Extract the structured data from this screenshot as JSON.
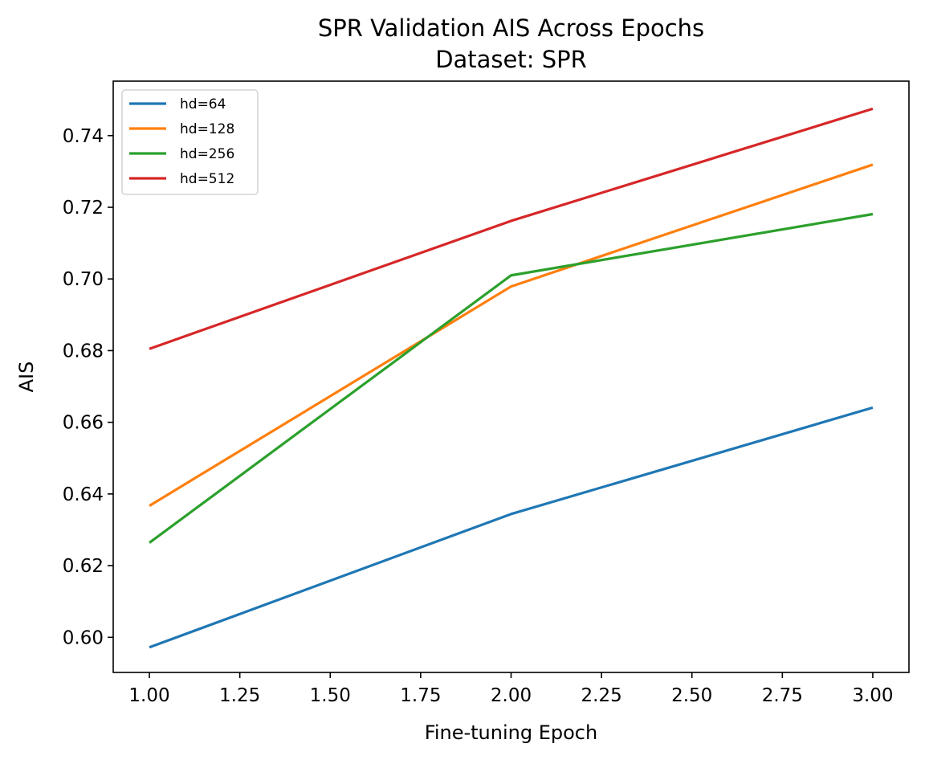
{
  "chart_data": {
    "type": "line",
    "title": "SPR Validation AIS Across Epochs",
    "subtitle": "Dataset: SPR",
    "xlabel": "Fine-tuning Epoch",
    "ylabel": "AIS",
    "x": [
      1,
      2,
      3
    ],
    "xlim": [
      0.9,
      3.1
    ],
    "ylim": [
      0.5902,
      0.7552
    ],
    "xticks": [
      1.0,
      1.25,
      1.5,
      1.75,
      2.0,
      2.25,
      2.5,
      2.75,
      3.0
    ],
    "xtick_labels": [
      "1.00",
      "1.25",
      "1.50",
      "1.75",
      "2.00",
      "2.25",
      "2.50",
      "2.75",
      "3.00"
    ],
    "yticks": [
      0.6,
      0.62,
      0.64,
      0.66,
      0.68,
      0.7,
      0.72,
      0.74
    ],
    "ytick_labels": [
      "0.60",
      "0.62",
      "0.64",
      "0.66",
      "0.68",
      "0.70",
      "0.72",
      "0.74"
    ],
    "grid": false,
    "legend_position": "top-left",
    "series": [
      {
        "name": "hd=64",
        "values": [
          0.5972,
          0.6344,
          0.6641
        ],
        "color": "#1f77b4"
      },
      {
        "name": "hd=128",
        "values": [
          0.6367,
          0.6979,
          0.7319
        ],
        "color": "#ff7f0e"
      },
      {
        "name": "hd=256",
        "values": [
          0.6264,
          0.701,
          0.7181
        ],
        "color": "#2ca02c"
      },
      {
        "name": "hd=512",
        "values": [
          0.6805,
          0.7162,
          0.7475
        ],
        "color": "#d62728"
      }
    ]
  }
}
